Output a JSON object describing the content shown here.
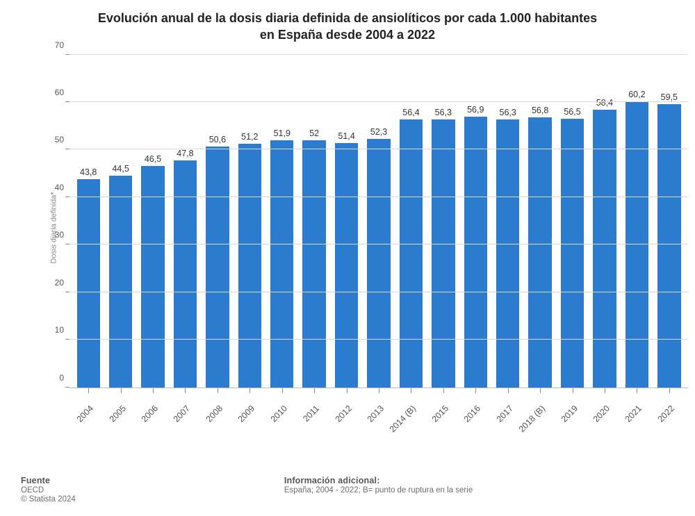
{
  "chart": {
    "type": "bar",
    "title_line1": "Evolución anual de la dosis diaria definida de ansiolíticos por cada 1.000 habitantes",
    "title_line2": "en España desde 2004 a 2022",
    "title_fontsize": 18,
    "title_color": "#222222",
    "ylabel": "Dosis diaria definida*",
    "ylabel_fontsize": 11,
    "ylabel_color": "#888888",
    "ylim": [
      0,
      70
    ],
    "ytick_step": 10,
    "yticks": [
      0,
      10,
      20,
      30,
      40,
      50,
      60,
      70
    ],
    "categories": [
      "2004",
      "2005",
      "2006",
      "2007",
      "2008",
      "2009",
      "2010",
      "2011",
      "2012",
      "2013",
      "2014 (B)",
      "2015",
      "2016",
      "2017",
      "2018 (B)",
      "2019",
      "2020",
      "2021",
      "2022"
    ],
    "values": [
      43.8,
      44.5,
      46.5,
      47.8,
      50.6,
      51.2,
      51.9,
      52,
      51.4,
      52.3,
      56.4,
      56.3,
      56.9,
      56.3,
      56.8,
      56.5,
      58.4,
      60.2,
      59.5
    ],
    "value_labels": [
      "43,8",
      "44,5",
      "46,5",
      "47,8",
      "50,6",
      "51,2",
      "51,9",
      "52",
      "51,4",
      "52,3",
      "56,4",
      "56,3",
      "56,9",
      "56,3",
      "56,8",
      "56,5",
      "58,4",
      "60,2",
      "59,5"
    ],
    "bar_color": "#2b7bcf",
    "bar_width": 0.72,
    "background_color": "#ffffff",
    "grid_color": "#d9d9d9",
    "axis_color": "#b8b8b8",
    "value_label_fontsize": 12.5,
    "value_label_color": "#333333",
    "xtick_label_fontsize": 12.5,
    "xtick_label_color": "#555555",
    "xtick_rotation_deg": -46
  },
  "footer": {
    "source_label": "Fuente",
    "source_value": "OECD",
    "copyright": "© Statista 2024",
    "info_label": "Información adicional:",
    "info_value": "España; 2004 - 2022; B= punto de ruptura en la serie",
    "fontsize": 11.5,
    "label_color": "#555555",
    "text_color": "#6d6d6d"
  }
}
